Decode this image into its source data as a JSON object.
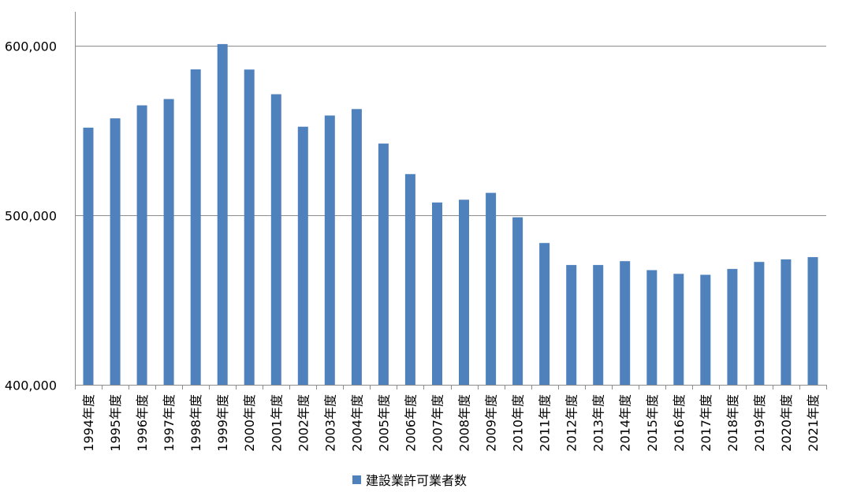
{
  "colors": {
    "series": "#4f81bd",
    "gridline": "#8c8c8c",
    "axis": "#8c8c8c",
    "background": "#ffffff"
  },
  "chart_data": {
    "type": "bar",
    "categories": [
      "1994年度",
      "1995年度",
      "1996年度",
      "1997年度",
      "1998年度",
      "1999年度",
      "2000年度",
      "2001年度",
      "2002年度",
      "2003年度",
      "2004年度",
      "2005年度",
      "2006年度",
      "2007年度",
      "2008年度",
      "2009年度",
      "2010年度",
      "2011年度",
      "2012年度",
      "2013年度",
      "2014年度",
      "2015年度",
      "2016年度",
      "2017年度",
      "2018年度",
      "2019年度",
      "2020年度",
      "2021年度"
    ],
    "series": [
      {
        "name": "建設業許可業者数",
        "values": [
          551661,
          557175,
          564849,
          568548,
          586045,
          600980,
          585959,
          571388,
          552210,
          558857,
          562661,
          542264,
          524273,
          507528,
          509174,
          513196,
          498806,
          483639,
          470639,
          470639,
          472921,
          467635,
          465454,
          464889,
          468311,
          472473,
          473952,
          475293
        ]
      }
    ],
    "yticks": [
      "400,000",
      "500,000",
      "600,000"
    ],
    "ylim": [
      400000,
      620000
    ],
    "gridlines": true,
    "legend": "bottom"
  }
}
